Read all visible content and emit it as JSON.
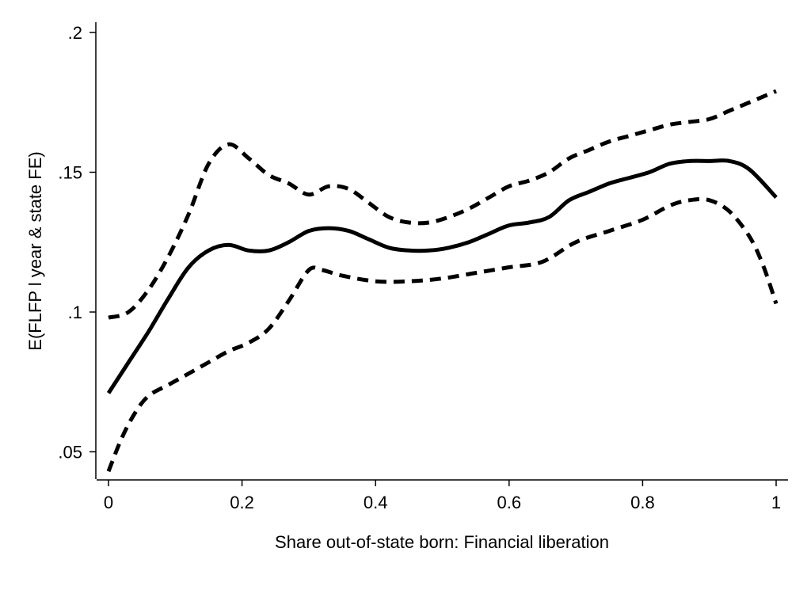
{
  "chart_data": {
    "type": "line",
    "xlabel": "Share out-of-state born: Financial liberation",
    "ylabel": "E(FLFP l year & state FE)",
    "xlim": [
      0,
      1
    ],
    "ylim": [
      0.045,
      0.2
    ],
    "x_ticks": [
      0,
      0.2,
      0.4,
      0.6,
      0.8,
      1
    ],
    "x_tick_labels": [
      "0",
      "0.2",
      "0.4",
      "0.6",
      "0.8",
      "1"
    ],
    "y_ticks": [
      0.05,
      0.1,
      0.15,
      0.2
    ],
    "y_tick_labels": [
      ".05",
      ".1",
      ".15",
      ".2"
    ],
    "grid": false,
    "legend": "none",
    "series": [
      {
        "style": "solid",
        "color": "#000000",
        "x": [
          0,
          0.03,
          0.06,
          0.09,
          0.12,
          0.15,
          0.18,
          0.21,
          0.24,
          0.27,
          0.3,
          0.33,
          0.36,
          0.39,
          0.42,
          0.45,
          0.48,
          0.51,
          0.54,
          0.57,
          0.6,
          0.63,
          0.66,
          0.69,
          0.72,
          0.75,
          0.78,
          0.81,
          0.84,
          0.87,
          0.9,
          0.93,
          0.96,
          1.0
        ],
        "y": [
          0.071,
          0.082,
          0.093,
          0.105,
          0.116,
          0.122,
          0.124,
          0.122,
          0.122,
          0.125,
          0.129,
          0.13,
          0.129,
          0.126,
          0.123,
          0.122,
          0.122,
          0.123,
          0.125,
          0.128,
          0.131,
          0.132,
          0.134,
          0.14,
          0.143,
          0.146,
          0.148,
          0.15,
          0.153,
          0.154,
          0.154,
          0.154,
          0.151,
          0.141
        ]
      },
      {
        "style": "dashed",
        "color": "#000000",
        "x": [
          0,
          0.03,
          0.06,
          0.09,
          0.12,
          0.15,
          0.18,
          0.21,
          0.24,
          0.27,
          0.3,
          0.33,
          0.36,
          0.39,
          0.42,
          0.45,
          0.48,
          0.51,
          0.54,
          0.57,
          0.6,
          0.63,
          0.66,
          0.69,
          0.72,
          0.75,
          0.78,
          0.81,
          0.84,
          0.87,
          0.9,
          0.93,
          0.96,
          1.0
        ],
        "y": [
          0.098,
          0.1,
          0.108,
          0.12,
          0.135,
          0.153,
          0.16,
          0.155,
          0.149,
          0.146,
          0.142,
          0.145,
          0.144,
          0.139,
          0.134,
          0.132,
          0.132,
          0.134,
          0.137,
          0.141,
          0.145,
          0.147,
          0.15,
          0.155,
          0.158,
          0.161,
          0.163,
          0.165,
          0.167,
          0.168,
          0.169,
          0.172,
          0.175,
          0.179
        ]
      },
      {
        "style": "dashed",
        "color": "#000000",
        "x": [
          0,
          0.02,
          0.04,
          0.06,
          0.09,
          0.12,
          0.15,
          0.18,
          0.21,
          0.24,
          0.27,
          0.3,
          0.32,
          0.35,
          0.4,
          0.45,
          0.5,
          0.55,
          0.6,
          0.65,
          0.7,
          0.75,
          0.8,
          0.84,
          0.87,
          0.9,
          0.93,
          0.96,
          0.98,
          1.0
        ],
        "y": [
          0.043,
          0.055,
          0.064,
          0.07,
          0.074,
          0.078,
          0.082,
          0.086,
          0.089,
          0.094,
          0.104,
          0.115,
          0.115,
          0.113,
          0.111,
          0.111,
          0.112,
          0.114,
          0.116,
          0.118,
          0.125,
          0.129,
          0.133,
          0.138,
          0.14,
          0.14,
          0.136,
          0.127,
          0.117,
          0.103
        ]
      }
    ]
  }
}
